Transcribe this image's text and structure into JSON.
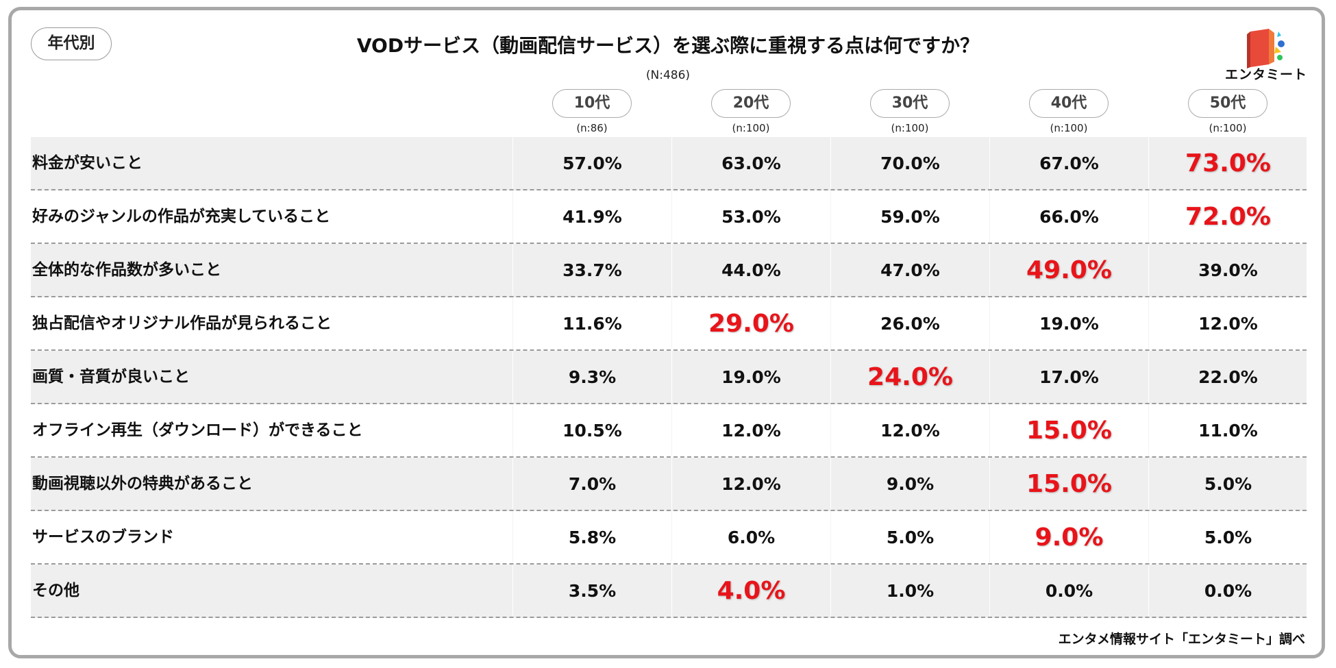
{
  "badge": "年代別",
  "chart_data": {
    "type": "table",
    "title": "VODサービス（動画配信サービス）を選ぶ際に重視する点は何ですか？",
    "total_n": "(N:486)",
    "columns": [
      {
        "label": "10代",
        "n": "(n:86)"
      },
      {
        "label": "20代",
        "n": "(n:100)"
      },
      {
        "label": "30代",
        "n": "(n:100)"
      },
      {
        "label": "40代",
        "n": "(n:100)"
      },
      {
        "label": "50代",
        "n": "(n:100)"
      }
    ],
    "rows": [
      {
        "label": "料金が安いこと",
        "values": [
          "57.0%",
          "63.0%",
          "70.0%",
          "67.0%",
          "73.0%"
        ],
        "highlight": 4
      },
      {
        "label": "好みのジャンルの作品が充実していること",
        "values": [
          "41.9%",
          "53.0%",
          "59.0%",
          "66.0%",
          "72.0%"
        ],
        "highlight": 4
      },
      {
        "label": "全体的な作品数が多いこと",
        "values": [
          "33.7%",
          "44.0%",
          "47.0%",
          "49.0%",
          "39.0%"
        ],
        "highlight": 3
      },
      {
        "label": "独占配信やオリジナル作品が見られること",
        "values": [
          "11.6%",
          "29.0%",
          "26.0%",
          "19.0%",
          "12.0%"
        ],
        "highlight": 1
      },
      {
        "label": "画質・音質が良いこと",
        "values": [
          "9.3%",
          "19.0%",
          "24.0%",
          "17.0%",
          "22.0%"
        ],
        "highlight": 2
      },
      {
        "label": "オフライン再生（ダウンロード）ができること",
        "values": [
          "10.5%",
          "12.0%",
          "12.0%",
          "15.0%",
          "11.0%"
        ],
        "highlight": 3
      },
      {
        "label": "動画視聴以外の特典があること",
        "values": [
          "7.0%",
          "12.0%",
          "9.0%",
          "15.0%",
          "5.0%"
        ],
        "highlight": 3
      },
      {
        "label": "サービスのブランド",
        "values": [
          "5.8%",
          "6.0%",
          "5.0%",
          "9.0%",
          "5.0%"
        ],
        "highlight": 3
      },
      {
        "label": "その他",
        "values": [
          "3.5%",
          "4.0%",
          "1.0%",
          "0.0%",
          "0.0%"
        ],
        "highlight": 1
      }
    ],
    "highlight_color": "#e8141a"
  },
  "logo": {
    "text": "エンタミート",
    "icon": "book-logo-icon"
  },
  "source": "エンタメ情報サイト「エンタミート」調べ"
}
